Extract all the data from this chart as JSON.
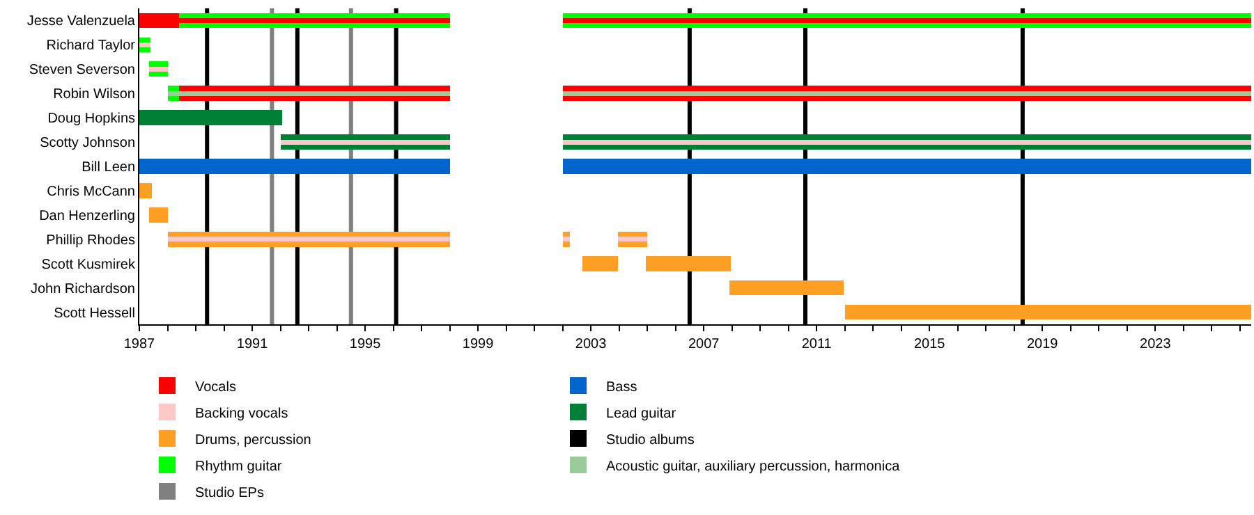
{
  "chart_data": {
    "type": "bar",
    "orientation": "horizontal",
    "legend": "bottom",
    "grid": false,
    "categories": [
      "Jesse Valenzuela",
      "Richard Taylor",
      "Steven Severson",
      "Robin Wilson",
      "Doug Hopkins",
      "Scotty Johnson",
      "Bill Leen",
      "Chris McCann",
      "Dan Henzerling",
      "Phillip Rhodes",
      "Scott Kusmirek",
      "John Richardson",
      "Scott Hessell"
    ],
    "xlim": [
      1987,
      2026.4
    ],
    "xticks": [
      1987,
      {
        "value": 1988,
        "label": null
      },
      {
        "value": 1989,
        "label": null
      },
      {
        "value": 1990,
        "label": null
      },
      1991,
      {
        "value": 1992,
        "label": null
      },
      {
        "value": 1993,
        "label": null
      },
      {
        "value": 1994,
        "label": null
      },
      1995,
      {
        "value": 1996,
        "label": null
      },
      {
        "value": 1997,
        "label": null
      },
      {
        "value": 1998,
        "label": null
      },
      1999,
      {
        "value": 2000,
        "label": null
      },
      {
        "value": 2001,
        "label": null
      },
      {
        "value": 2002,
        "label": null
      },
      2003,
      {
        "value": 2004,
        "label": null
      },
      {
        "value": 2005,
        "label": null
      },
      {
        "value": 2006,
        "label": null
      },
      2007,
      {
        "value": 2008,
        "label": null
      },
      {
        "value": 2009,
        "label": null
      },
      {
        "value": 2010,
        "label": null
      },
      2011,
      {
        "value": 2012,
        "label": null
      },
      {
        "value": 2013,
        "label": null
      },
      {
        "value": 2014,
        "label": null
      },
      2015,
      {
        "value": 2016,
        "label": null
      },
      {
        "value": 2017,
        "label": null
      },
      {
        "value": 2018,
        "label": null
      },
      2019,
      {
        "value": 2020,
        "label": null
      },
      {
        "value": 2021,
        "label": null
      },
      {
        "value": 2022,
        "label": null
      },
      2023,
      {
        "value": 2024,
        "label": null
      },
      {
        "value": 2025,
        "label": null
      },
      {
        "value": 2026,
        "label": null
      }
    ],
    "series": [
      {
        "name": "Vocals",
        "color": "#ff0000",
        "base": [
          1987,
          null,
          null,
          1988.4,
          null,
          null,
          null,
          null,
          null,
          null,
          null,
          null,
          null
        ],
        "values": [
          1.4,
          null,
          null,
          9.6,
          null,
          null,
          null,
          null,
          null,
          null,
          null,
          null,
          null
        ]
      },
      {
        "color": "#ff0000",
        "base": [
          null,
          null,
          null,
          2002,
          null,
          null,
          null,
          null,
          null,
          null,
          null,
          null,
          null
        ],
        "values": [
          null,
          null,
          null,
          24.4,
          null,
          null,
          null,
          null,
          null,
          null,
          null,
          null,
          null
        ]
      },
      {
        "name": "Lead guitar",
        "color": "#007f37",
        "base": [
          null,
          null,
          null,
          null,
          1987,
          1992,
          null,
          null,
          null,
          null,
          null,
          null,
          null
        ],
        "values": [
          null,
          null,
          null,
          null,
          5.05,
          6,
          null,
          null,
          null,
          null,
          null,
          null,
          null
        ]
      },
      {
        "color": "#007f37",
        "base": [
          null,
          null,
          null,
          null,
          null,
          2002,
          null,
          null,
          null,
          null,
          null,
          null,
          null
        ],
        "values": [
          null,
          null,
          null,
          null,
          null,
          24.4,
          null,
          null,
          null,
          null,
          null,
          null,
          null
        ]
      },
      {
        "name": "Rhythm guitar",
        "color": "#00ff00",
        "base": [
          1988.4,
          1987,
          1987.35,
          1988,
          null,
          null,
          null,
          null,
          null,
          null,
          null,
          null,
          null
        ],
        "values": [
          9.6,
          0.4,
          0.65,
          0.4,
          null,
          null,
          null,
          null,
          null,
          null,
          null,
          null,
          null
        ]
      },
      {
        "color": "#00ff00",
        "base": [
          2002,
          null,
          null,
          null,
          null,
          null,
          null,
          null,
          null,
          null,
          null,
          null,
          null
        ],
        "values": [
          24.4,
          null,
          null,
          null,
          null,
          null,
          null,
          null,
          null,
          null,
          null,
          null,
          null
        ]
      },
      {
        "name": "Bass",
        "color": "#0066cc",
        "base": [
          null,
          null,
          null,
          null,
          null,
          null,
          1987,
          null,
          null,
          null,
          null,
          null,
          null
        ],
        "values": [
          null,
          null,
          null,
          null,
          null,
          null,
          11,
          null,
          null,
          null,
          null,
          null,
          null
        ]
      },
      {
        "color": "#0066cc",
        "base": [
          null,
          null,
          null,
          null,
          null,
          null,
          2002,
          null,
          null,
          null,
          null,
          null,
          null
        ],
        "values": [
          null,
          null,
          null,
          null,
          null,
          null,
          24.4,
          null,
          null,
          null,
          null,
          null,
          null
        ]
      },
      {
        "name": "Drums, percussion",
        "color": "#ff9f23",
        "base": [
          null,
          null,
          null,
          null,
          null,
          null,
          null,
          1987,
          1987.35,
          1988,
          2002.7,
          2007.9,
          2012
        ],
        "values": [
          null,
          null,
          null,
          null,
          null,
          null,
          null,
          0.45,
          0.65,
          10,
          1.25,
          4.05,
          14.4
        ]
      },
      {
        "color": "#ff9f23",
        "base": [
          null,
          null,
          null,
          null,
          null,
          null,
          null,
          null,
          null,
          2002,
          2004.95,
          null,
          null
        ],
        "values": [
          null,
          null,
          null,
          null,
          null,
          null,
          null,
          null,
          null,
          0.25,
          3,
          null,
          null
        ]
      },
      {
        "color": "#ff9f23",
        "base": [
          null,
          null,
          null,
          null,
          null,
          null,
          null,
          null,
          null,
          2003.95,
          null,
          null,
          null
        ],
        "values": [
          null,
          null,
          null,
          null,
          null,
          null,
          null,
          null,
          null,
          1.05,
          null,
          null,
          null
        ]
      },
      {
        "name": "Acoustic guitar, auxiliary percussion, harmonica",
        "color": "#99cc99",
        "base": [
          null,
          null,
          null,
          1988,
          null,
          null,
          null,
          null,
          null,
          null,
          null,
          null,
          null
        ],
        "values": [
          null,
          null,
          null,
          10,
          null,
          null,
          null,
          null,
          null,
          null,
          null,
          null,
          null
        ]
      },
      {
        "color": "#99cc99",
        "base": [
          null,
          null,
          null,
          2002,
          null,
          null,
          null,
          null,
          null,
          null,
          null,
          null,
          null
        ],
        "values": [
          null,
          null,
          null,
          24.4,
          null,
          null,
          null,
          null,
          null,
          null,
          null,
          null,
          null
        ]
      },
      {
        "name": "Backing vocals",
        "color": "#ffc8c8",
        "base": [
          null,
          1987,
          1987.35,
          null,
          null,
          1992,
          null,
          null,
          null,
          1988,
          null,
          null,
          null
        ],
        "values": [
          null,
          0.4,
          0.65,
          null,
          null,
          6,
          null,
          null,
          null,
          10,
          null,
          null,
          null
        ]
      },
      {
        "color": "#ffc8c8",
        "base": [
          null,
          null,
          null,
          null,
          null,
          2002,
          null,
          null,
          null,
          2002,
          null,
          null,
          null
        ],
        "values": [
          null,
          null,
          null,
          null,
          null,
          24.4,
          null,
          null,
          null,
          0.25,
          null,
          null,
          null
        ]
      },
      {
        "color": "#ffc8c8",
        "base": [
          null,
          null,
          null,
          null,
          null,
          null,
          null,
          null,
          null,
          2003.95,
          null,
          null,
          null
        ],
        "values": [
          null,
          null,
          null,
          null,
          null,
          null,
          null,
          null,
          null,
          1.05,
          null,
          null,
          null
        ]
      },
      {
        "color": "#ff0000",
        "base": [
          1988.4,
          null,
          null,
          null,
          null,
          null,
          null,
          null,
          null,
          null,
          null,
          null,
          null
        ],
        "values": [
          9.6,
          null,
          null,
          null,
          null,
          null,
          null,
          null,
          null,
          null,
          null,
          null,
          null
        ]
      },
      {
        "color": "#ff0000",
        "base": [
          2002,
          null,
          null,
          null,
          null,
          null,
          null,
          null,
          null,
          null,
          null,
          null,
          null
        ],
        "values": [
          24.4,
          null,
          null,
          null,
          null,
          null,
          null,
          null,
          null,
          null,
          null,
          null,
          null
        ]
      }
    ],
    "ref_lines": [
      {
        "axis": "x",
        "value": 1989.4,
        "label": "Studio albums",
        "color": "#000000"
      },
      {
        "axis": "x",
        "value": 1992.6,
        "color": "#000000"
      },
      {
        "axis": "x",
        "value": 1996.1,
        "color": "#000000"
      },
      {
        "axis": "x",
        "value": 2006.5,
        "color": "#000000"
      },
      {
        "axis": "x",
        "value": 2010.6,
        "color": "#000000"
      },
      {
        "axis": "x",
        "value": 2018.3,
        "color": "#000000"
      },
      {
        "axis": "x",
        "value": 1991.7,
        "label": "Studio EPs",
        "color": "#808080"
      },
      {
        "axis": "x",
        "value": 1994.5,
        "color": "#808080"
      }
    ]
  }
}
